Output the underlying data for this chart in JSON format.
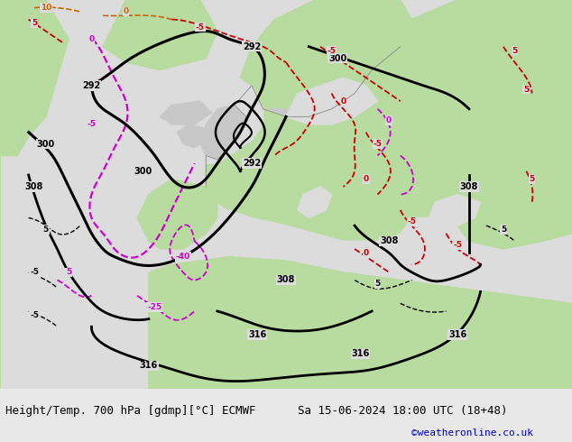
{
  "title_left": "Height/Temp. 700 hPa [gdmp][°C] ECMWF",
  "title_right": "Sa 15-06-2024 18:00 UTC (18+48)",
  "credit": "©weatheronline.co.uk",
  "bg_color": "#e8e8e8",
  "map_bg": "#dcdcdc",
  "text_color": "#000000",
  "credit_color": "#0000cc",
  "fig_width": 6.34,
  "fig_height": 4.9,
  "dpi": 100,
  "font_size": 9.0,
  "credit_font_size": 8.0,
  "green_color": "#b8dba0",
  "gray_land_color": "#c8c8c8",
  "sea_color": "#dcdcdc"
}
